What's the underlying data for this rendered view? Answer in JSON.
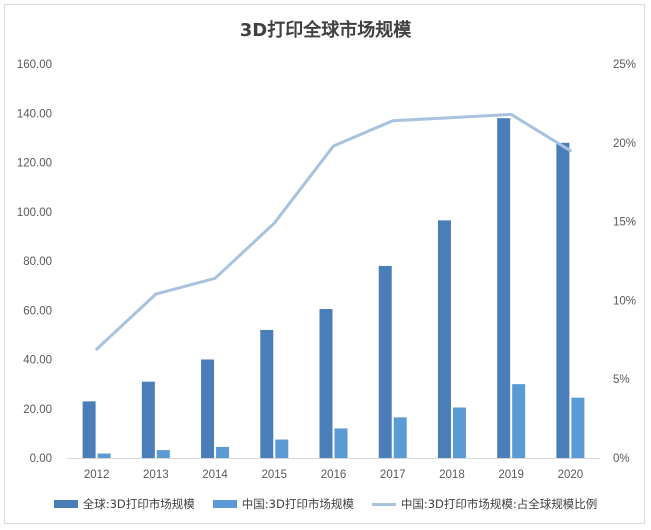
{
  "chart_data": {
    "type": "bar",
    "title": "3D打印全球市场规模",
    "categories": [
      "2012",
      "2013",
      "2014",
      "2015",
      "2016",
      "2017",
      "2018",
      "2019",
      "2020"
    ],
    "series": [
      {
        "name": "全球:3D打印市场规模",
        "type": "bar",
        "axis": "left",
        "color": "#4a7eb8",
        "values": [
          23.0,
          31.0,
          40.0,
          52.0,
          60.5,
          78.0,
          96.5,
          138.0,
          128.0
        ]
      },
      {
        "name": "中国:3D打印市场规模",
        "type": "bar",
        "axis": "left",
        "color": "#5b9bd5",
        "values": [
          1.8,
          3.2,
          4.5,
          7.5,
          12.0,
          16.5,
          20.5,
          30.0,
          24.5
        ]
      },
      {
        "name": "中国:3D打印市场规模:占全球规模比例",
        "type": "line",
        "axis": "right",
        "color": "#a8c3e0",
        "values": [
          0.069,
          0.104,
          0.114,
          0.149,
          0.198,
          0.214,
          0.216,
          0.218,
          0.195
        ]
      }
    ],
    "y_left": {
      "min": 0,
      "max": 160,
      "ticks": [
        "0.00",
        "20.00",
        "40.00",
        "60.00",
        "80.00",
        "100.00",
        "120.00",
        "140.00",
        "160.00"
      ]
    },
    "y_right": {
      "min": 0,
      "max": 0.25,
      "ticks": [
        "0%",
        "5%",
        "10%",
        "15%",
        "20%",
        "25%"
      ]
    },
    "grid": false,
    "legend_position": "bottom"
  }
}
